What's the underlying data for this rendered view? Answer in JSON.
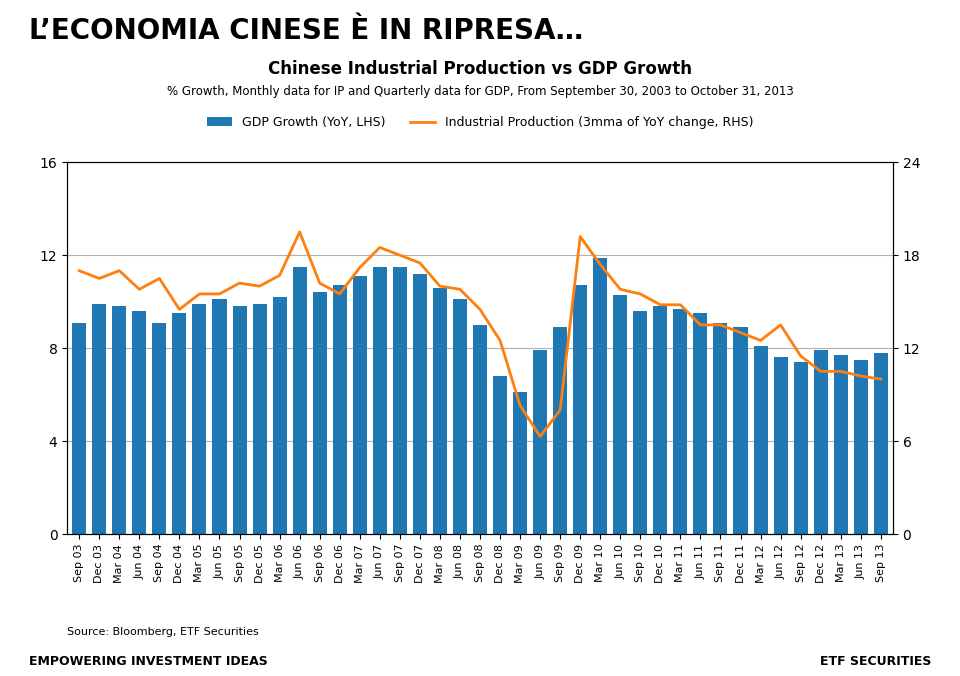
{
  "title": "L’ECONOMIA CINESE È IN RIPRESA…",
  "chart_data": {
    "type": "bar",
    "title": "Chinese Industrial Production vs GDP Growth",
    "subtitle": "% Growth, Monthly data for IP and Quarterly data for GDP, From September 30, 2003 to October 31, 2013",
    "annotations": [
      "Source: Bloomberg, ETF Securities",
      "EMPOWERING INVESTMENT IDEAS",
      "ETF SECURITIES"
    ],
    "categories": [
      "Sep 03",
      "Dec 03",
      "Mar 04",
      "Jun 04",
      "Sep 04",
      "Dec 04",
      "Mar 05",
      "Jun 05",
      "Sep 05",
      "Dec 05",
      "Mar 06",
      "Jun 06",
      "Sep 06",
      "Dec 06",
      "Mar 07",
      "Jun 07",
      "Sep 07",
      "Dec 07",
      "Mar 08",
      "Jun 08",
      "Sep 08",
      "Dec 08",
      "Mar 09",
      "Jun 09",
      "Sep 09",
      "Dec 09",
      "Mar 10",
      "Jun 10",
      "Sep 10",
      "Dec 10",
      "Mar 11",
      "Jun 11",
      "Sep 11",
      "Dec 11",
      "Mar 12",
      "Jun 12",
      "Sep 12",
      "Dec 12",
      "Mar 13",
      "Jun 13",
      "Sep 13"
    ],
    "series": [
      {
        "name": "GDP Growth (YoY, LHS)",
        "type": "bar",
        "values": [
          9.1,
          9.9,
          9.8,
          9.6,
          9.1,
          9.5,
          9.9,
          10.1,
          9.8,
          9.9,
          10.2,
          11.5,
          10.4,
          10.7,
          11.1,
          11.5,
          11.5,
          11.2,
          10.6,
          10.1,
          9.0,
          6.8,
          6.1,
          7.9,
          8.9,
          10.7,
          11.9,
          10.3,
          9.6,
          9.8,
          9.7,
          9.5,
          9.1,
          8.9,
          8.1,
          7.6,
          7.4,
          7.9,
          7.7,
          7.5,
          7.8
        ]
      },
      {
        "name": "Industrial Production (3mma of YoY change, RHS)",
        "type": "line",
        "axis": "y2",
        "values": [
          17.0,
          16.5,
          17.0,
          15.8,
          16.5,
          14.5,
          15.5,
          15.5,
          16.2,
          16.0,
          16.7,
          19.5,
          16.2,
          15.5,
          17.2,
          18.5,
          18.0,
          17.5,
          16.0,
          15.8,
          14.5,
          12.5,
          8.3,
          6.3,
          8.0,
          19.2,
          17.4,
          15.8,
          15.5,
          14.8,
          14.8,
          13.5,
          13.5,
          13.0,
          12.5,
          13.5,
          11.5,
          10.5,
          10.5,
          10.2,
          10.0
        ]
      }
    ],
    "ylim": [
      0,
      16
    ],
    "yticks": [
      0,
      4,
      8,
      12,
      16
    ],
    "y2lim": [
      0,
      24
    ],
    "y2ticks": [
      0,
      6,
      12,
      18,
      24
    ],
    "grid": true,
    "legend": "upper center"
  }
}
